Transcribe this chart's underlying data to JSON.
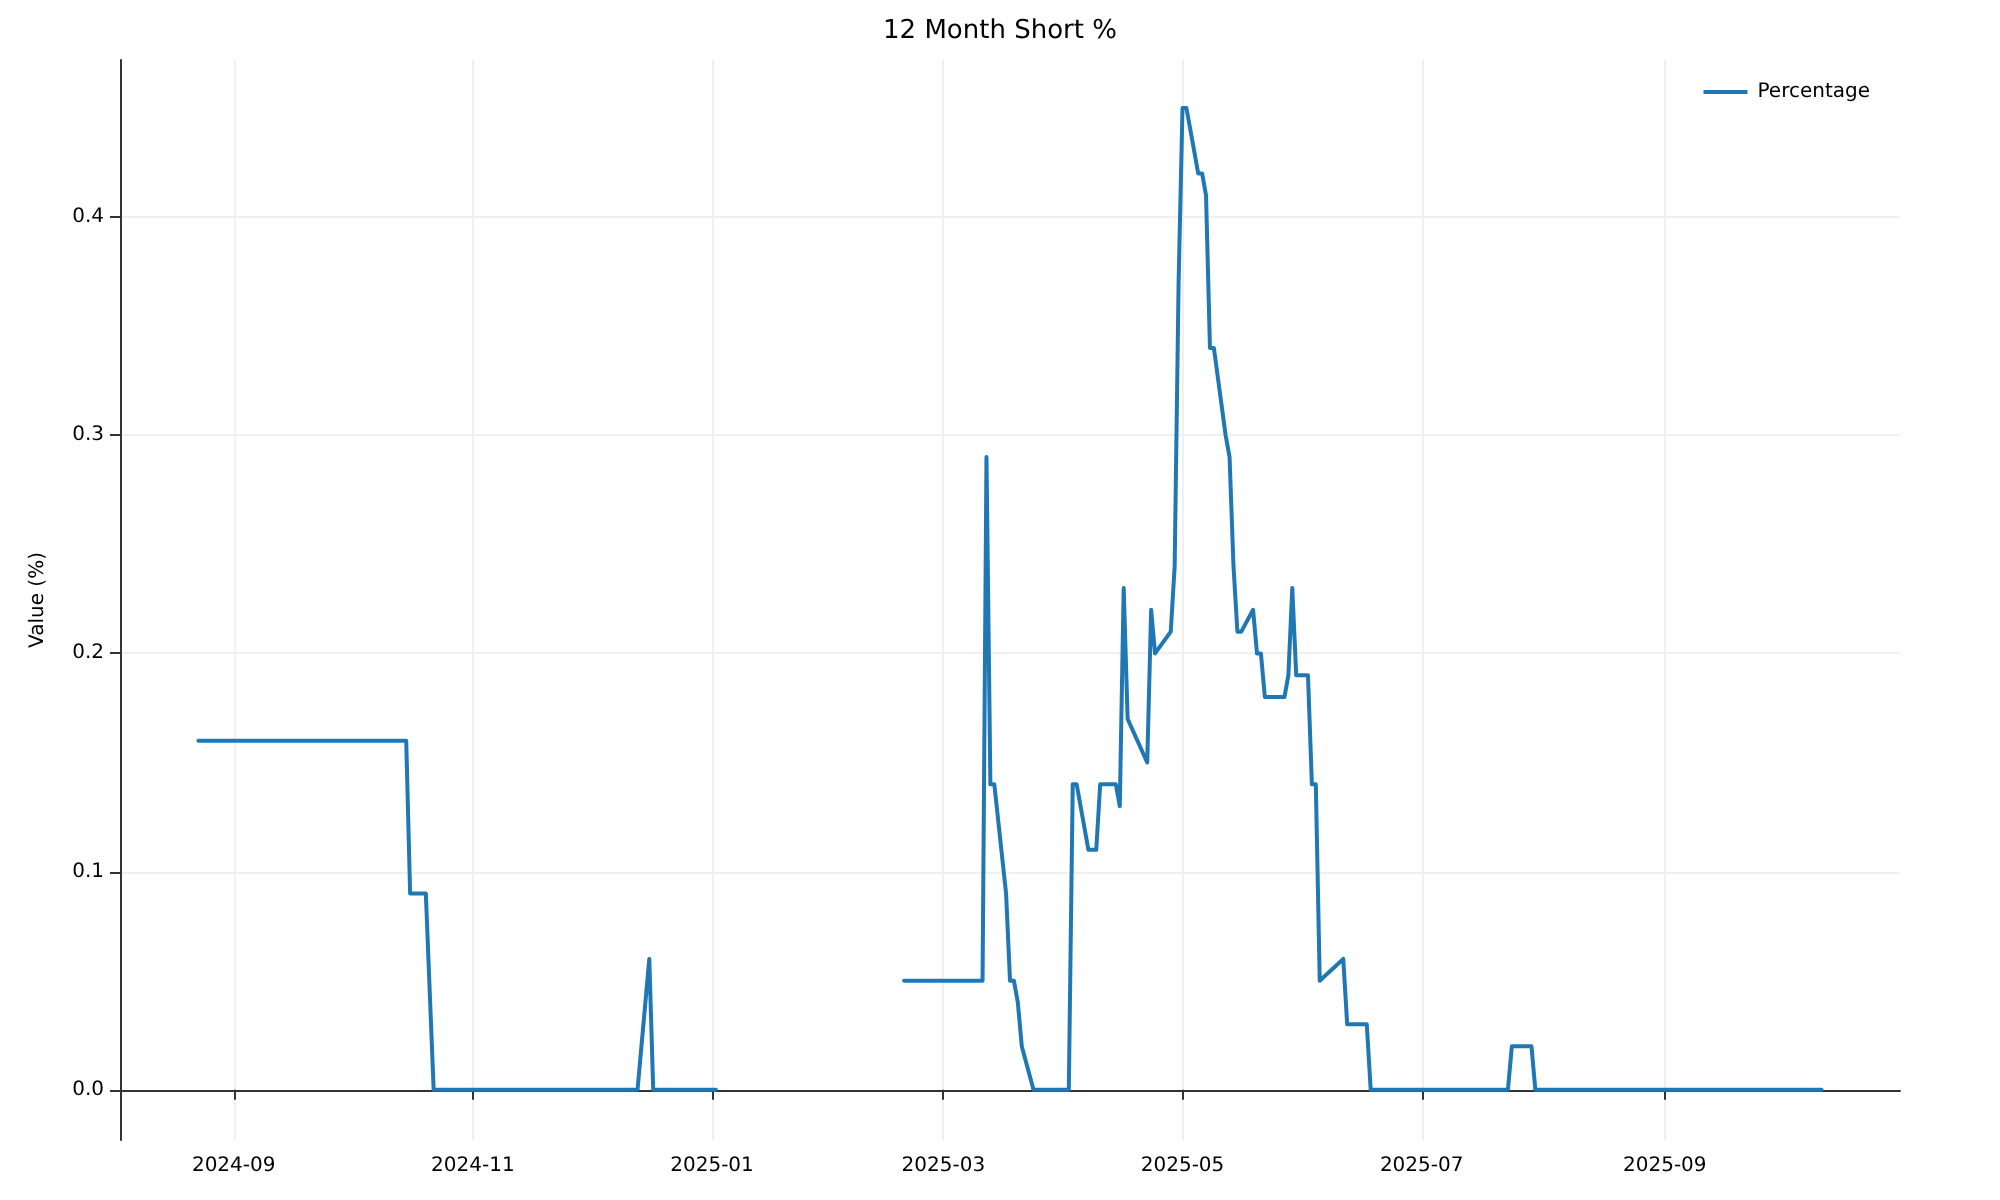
{
  "chart_data": {
    "type": "line",
    "title": "12 Month Short %",
    "ylabel": "Value (%)",
    "xlim": [
      "2024-08-03",
      "2025-10-31"
    ],
    "ylim": [
      -0.023,
      0.472
    ],
    "xticks": [
      {
        "value": "2024-09-01",
        "label": "2024-09"
      },
      {
        "value": "2024-11-01",
        "label": "2024-11"
      },
      {
        "value": "2025-01-01",
        "label": "2025-01"
      },
      {
        "value": "2025-03-01",
        "label": "2025-03"
      },
      {
        "value": "2025-05-01",
        "label": "2025-05"
      },
      {
        "value": "2025-07-01",
        "label": "2025-07"
      },
      {
        "value": "2025-09-01",
        "label": "2025-09"
      }
    ],
    "yticks": [
      {
        "value": 0,
        "label": "0.0"
      },
      0.1,
      0.2,
      0.3,
      0.4
    ],
    "grid": true,
    "legend": "top right",
    "marker": "none",
    "line_style": "solid",
    "x": [
      "2024-08-23",
      "2024-10-15",
      "2024-10-16",
      "2024-10-20",
      "2024-10-22",
      "2024-12-13",
      "2024-12-16",
      "2024-12-17",
      "2025-01-02",
      "2025-01-20",
      "2025-02-19",
      "2025-03-11",
      "2025-03-12",
      "2025-03-13",
      "2025-03-14",
      "2025-03-17",
      "2025-03-18",
      "2025-03-19",
      "2025-03-20",
      "2025-03-21",
      "2025-03-24",
      "2025-04-02",
      "2025-04-03",
      "2025-04-04",
      "2025-04-07",
      "2025-04-09",
      "2025-04-10",
      "2025-04-14",
      "2025-04-15",
      "2025-04-16",
      "2025-04-17",
      "2025-04-22",
      "2025-04-23",
      "2025-04-24",
      "2025-04-28",
      "2025-04-29",
      "2025-04-30",
      "2025-05-01",
      "2025-05-02",
      "2025-05-05",
      "2025-05-06",
      "2025-05-07",
      "2025-05-08",
      "2025-05-09",
      "2025-05-12",
      "2025-05-13",
      "2025-05-14",
      "2025-05-15",
      "2025-05-16",
      "2025-05-19",
      "2025-05-20",
      "2025-05-21",
      "2025-05-22",
      "2025-05-27",
      "2025-05-28",
      "2025-05-29",
      "2025-05-30",
      "2025-06-02",
      "2025-06-03",
      "2025-06-04",
      "2025-06-05",
      "2025-06-11",
      "2025-06-12",
      "2025-06-17",
      "2025-06-18",
      "2025-07-23",
      "2025-07-24",
      "2025-07-29",
      "2025-07-30",
      "2025-10-11"
    ],
    "series": [
      {
        "name": "Percentage",
        "color": "#1f77b4",
        "values": [
          0.16,
          0.16,
          0.09,
          0.09,
          0,
          0,
          0.06,
          0,
          0,
          null,
          0.05,
          0.05,
          0.29,
          0.14,
          0.14,
          0.09,
          0.05,
          0.05,
          0.04,
          0.02,
          0,
          0,
          0.14,
          0.14,
          0.11,
          0.11,
          0.14,
          0.14,
          0.13,
          0.23,
          0.17,
          0.15,
          0.22,
          0.2,
          0.21,
          0.24,
          0.37,
          0.45,
          0.45,
          0.42,
          0.42,
          0.41,
          0.34,
          0.34,
          0.3,
          0.29,
          0.24,
          0.21,
          0.21,
          0.22,
          0.2,
          0.2,
          0.18,
          0.18,
          0.19,
          0.23,
          0.19,
          0.19,
          0.14,
          0.14,
          0.05,
          0.06,
          0.03,
          0.03,
          0,
          0,
          0.02,
          0.02,
          0,
          0
        ]
      }
    ]
  }
}
